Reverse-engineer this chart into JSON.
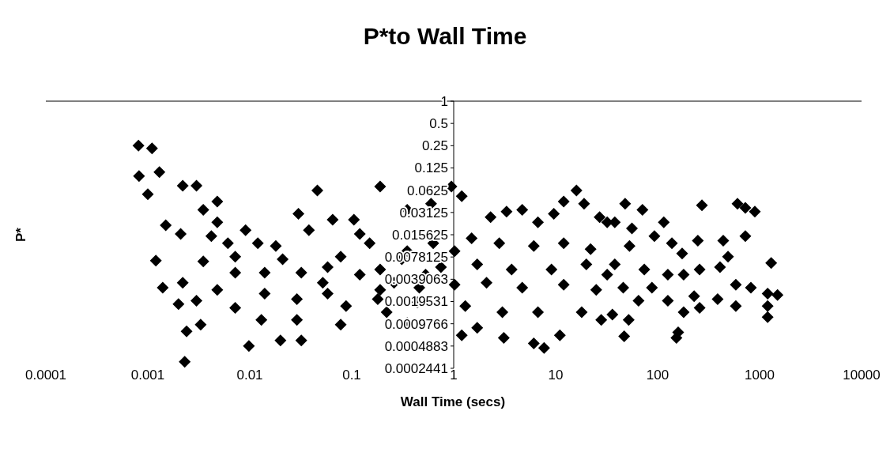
{
  "chart_data": {
    "type": "scatter",
    "title": "P*to Wall Time",
    "xlabel": "Wall Time (secs)",
    "ylabel": "P*",
    "log": "xy",
    "marker": "diamond",
    "grid": false,
    "xlim": [
      0.0001,
      10000
    ],
    "xticks": [
      0.0001,
      0.001,
      0.01,
      0.1,
      1,
      10,
      100,
      1000,
      10000
    ],
    "ylim": [
      0.000244140625,
      1
    ],
    "yticks": [
      1,
      0.5,
      0.25,
      0.125,
      0.0625,
      0.03125,
      0.015625,
      0.0078125,
      {
        "value": 0.00390625,
        "label": "0.0039063"
      },
      {
        "value": 0.001953125,
        "label": "0.0019531"
      },
      {
        "value": 0.0009765625,
        "label": "0.0009766"
      },
      {
        "value": 0.00048828125,
        "label": "0.0004883"
      },
      {
        "value": 0.000244140625,
        "label": "0.0002441"
      }
    ],
    "series": [
      {
        "color": "#000000",
        "x": [
          0.00081,
          0.0011,
          0.00082,
          0.0013,
          0.001,
          0.0022,
          0.003,
          0.0048,
          0.0015,
          0.0021,
          0.0035,
          0.0048,
          0.0012,
          0.0035,
          0.0014,
          0.0022,
          0.002,
          0.003,
          0.0024,
          0.0033,
          0.0023,
          0.0098,
          0.02,
          0.032,
          0.046,
          0.03,
          0.065,
          0.105,
          0.0091,
          0.038,
          0.0072,
          0.018,
          0.0072,
          0.014,
          0.032,
          0.0048,
          0.0072,
          0.014,
          0.029,
          0.058,
          0.013,
          0.029,
          0.078,
          0.058,
          0.078,
          0.19,
          0.95,
          1.2,
          0.6,
          0.35,
          2.3,
          3.3,
          4.7,
          6.7,
          9.6,
          16,
          12,
          19,
          27,
          32,
          1.5,
          2.8,
          6.1,
          12,
          22,
          1.02,
          1.7,
          3.7,
          9.1,
          20,
          32,
          1.02,
          2.1,
          4.7,
          12,
          25,
          1.3,
          3.0,
          6.7,
          18,
          28,
          1.2,
          1.7,
          3.1,
          6.1,
          7.7,
          11,
          0.35,
          0.19,
          0.35,
          0.19,
          0.46,
          0.12,
          0.12,
          0.22,
          48,
          71,
          38,
          56,
          115,
          272,
          607,
          725,
          898,
          725,
          53,
          93,
          138,
          248,
          440,
          174,
          490,
          1300,
          38,
          74,
          126,
          258,
          409,
          46,
          88,
          180,
          228,
          388,
          585,
          822,
          1200,
          1500,
          585,
          1200,
          1200,
          180,
          258,
          52,
          36,
          47,
          159,
          153,
          126,
          65,
          0.15,
          0.31,
          0.53,
          0.18,
          0.44,
          0.63,
          0.75,
          0.26,
          0.012,
          0.021,
          0.052,
          0.088,
          0.0061,
          0.0042
        ],
        "values": [
          0.25,
          0.23,
          0.097,
          0.11,
          0.055,
          0.072,
          0.072,
          0.044,
          0.021,
          0.016,
          0.034,
          0.023,
          0.007,
          0.0068,
          0.003,
          0.0035,
          0.0018,
          0.002,
          0.00077,
          0.00095,
          0.0003,
          0.00049,
          0.00058,
          0.00058,
          0.062,
          0.03,
          0.025,
          0.025,
          0.018,
          0.018,
          0.0079,
          0.011,
          0.0048,
          0.0048,
          0.0048,
          0.0028,
          0.0016,
          0.0025,
          0.0021,
          0.0025,
          0.0011,
          0.0011,
          0.00095,
          0.0057,
          0.0079,
          0.07,
          0.07,
          0.052,
          0.041,
          0.034,
          0.027,
          0.032,
          0.034,
          0.023,
          0.03,
          0.062,
          0.044,
          0.041,
          0.027,
          0.023,
          0.014,
          0.012,
          0.011,
          0.012,
          0.01,
          0.0094,
          0.0062,
          0.0053,
          0.0053,
          0.0062,
          0.0045,
          0.0033,
          0.0035,
          0.003,
          0.0033,
          0.0028,
          0.0017,
          0.0014,
          0.0014,
          0.0014,
          0.0011,
          0.00068,
          0.00086,
          0.00063,
          0.00053,
          0.00046,
          0.00068,
          0.001,
          0.0053,
          0.0094,
          0.0028,
          0.003,
          0.016,
          0.0045,
          0.0014,
          0.041,
          0.034,
          0.023,
          0.019,
          0.023,
          0.039,
          0.041,
          0.036,
          0.032,
          0.015,
          0.011,
          0.015,
          0.012,
          0.013,
          0.013,
          0.0087,
          0.0079,
          0.0065,
          0.0062,
          0.0053,
          0.0045,
          0.0053,
          0.0057,
          0.003,
          0.003,
          0.0045,
          0.0023,
          0.0021,
          0.0033,
          0.003,
          0.0025,
          0.0024,
          0.0017,
          0.0017,
          0.0012,
          0.0014,
          0.0016,
          0.0011,
          0.0013,
          0.00066,
          0.00075,
          0.00063,
          0.002,
          0.002,
          0.012,
          0.0073,
          0.0045,
          0.0021,
          0.0019,
          0.012,
          0.0057,
          0.0035,
          0.012,
          0.0073,
          0.0035,
          0.0017,
          0.012,
          0.015
        ]
      }
    ]
  }
}
